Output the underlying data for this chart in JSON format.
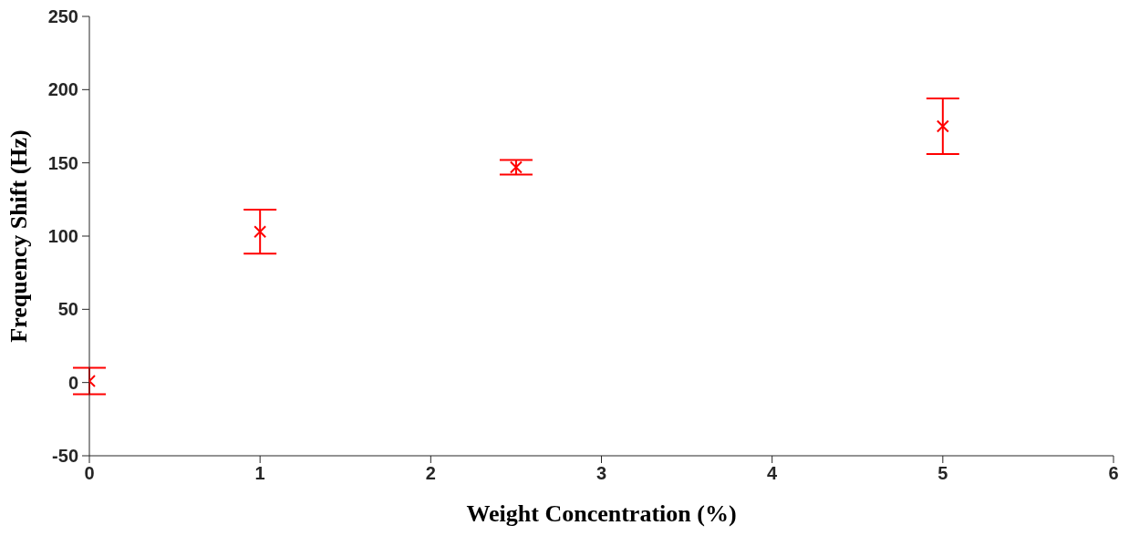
{
  "chart_data": {
    "type": "scatter",
    "xlabel": "Weight Concentration (%)",
    "ylabel": "Frequency Shift (Hz)",
    "x": [
      0,
      1,
      2.5,
      5
    ],
    "values": [
      1,
      103,
      147,
      175
    ],
    "errors": [
      9,
      15,
      5,
      19
    ],
    "color": "#ff0000",
    "marker": "cross",
    "grid": false,
    "legend": false,
    "xlim": [
      0,
      6
    ],
    "xticks": [
      0,
      1,
      2,
      3,
      4,
      5,
      6
    ],
    "ylim": [
      -50,
      250
    ],
    "yticks": [
      -50,
      0,
      50,
      100,
      150,
      200,
      250
    ]
  }
}
